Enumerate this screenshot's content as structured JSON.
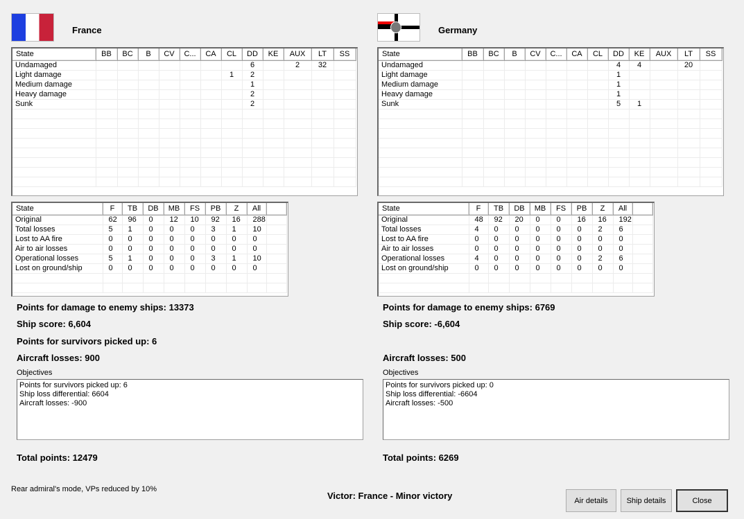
{
  "ship_columns": [
    "State",
    "BB",
    "BC",
    "B",
    "CV",
    "C...",
    "CA",
    "CL",
    "DD",
    "KE",
    "AUX",
    "LT",
    "SS"
  ],
  "air_columns": [
    "State",
    "F",
    "TB",
    "DB",
    "MB",
    "FS",
    "PB",
    "Z",
    "All"
  ],
  "sides": [
    {
      "name": "France",
      "flag": "france-flag",
      "ships": [
        [
          "Undamaged",
          "",
          "",
          "",
          "",
          "",
          "",
          "",
          "6",
          "",
          "2",
          "32",
          ""
        ],
        [
          "Light damage",
          "",
          "",
          "",
          "",
          "",
          "",
          "1",
          "2",
          "",
          "",
          "",
          ""
        ],
        [
          "Medium damage",
          "",
          "",
          "",
          "",
          "",
          "",
          "",
          "1",
          "",
          "",
          "",
          ""
        ],
        [
          "Heavy damage",
          "",
          "",
          "",
          "",
          "",
          "",
          "",
          "2",
          "",
          "",
          "",
          ""
        ],
        [
          "Sunk",
          "",
          "",
          "",
          "",
          "",
          "",
          "",
          "2",
          "",
          "",
          "",
          ""
        ]
      ],
      "air": [
        [
          "Original",
          "62",
          "96",
          "0",
          "12",
          "10",
          "92",
          "16",
          "288"
        ],
        [
          "Total losses",
          "5",
          "1",
          "0",
          "0",
          "0",
          "3",
          "1",
          "10"
        ],
        [
          "Lost to AA fire",
          "0",
          "0",
          "0",
          "0",
          "0",
          "0",
          "0",
          "0"
        ],
        [
          "Air to air losses",
          "0",
          "0",
          "0",
          "0",
          "0",
          "0",
          "0",
          "0"
        ],
        [
          "Operational losses",
          "5",
          "1",
          "0",
          "0",
          "0",
          "3",
          "1",
          "10"
        ],
        [
          "Lost on ground/ship",
          "0",
          "0",
          "0",
          "0",
          "0",
          "0",
          "0",
          "0"
        ]
      ],
      "damage_points": "Points for damage to enemy ships: 13373",
      "ship_score": "Ship score: 6,604",
      "survivors": "Points for survivors picked up: 6",
      "aircraft_losses": "Aircraft losses: 900",
      "objectives_label": "Objectives",
      "objectives": [
        "Points for survivors picked up: 6",
        "Ship loss differential: 6604",
        "Aircraft losses: -900"
      ],
      "total": "Total points: 12479"
    },
    {
      "name": "Germany",
      "flag": "german-imperial-ensign",
      "ships": [
        [
          "Undamaged",
          "",
          "",
          "",
          "",
          "",
          "",
          "",
          "4",
          "4",
          "",
          "20",
          ""
        ],
        [
          "Light damage",
          "",
          "",
          "",
          "",
          "",
          "",
          "",
          "1",
          "",
          "",
          "",
          ""
        ],
        [
          "Medium damage",
          "",
          "",
          "",
          "",
          "",
          "",
          "",
          "1",
          "",
          "",
          "",
          ""
        ],
        [
          "Heavy damage",
          "",
          "",
          "",
          "",
          "",
          "",
          "",
          "1",
          "",
          "",
          "",
          ""
        ],
        [
          "Sunk",
          "",
          "",
          "",
          "",
          "",
          "",
          "",
          "5",
          "1",
          "",
          "",
          ""
        ]
      ],
      "air": [
        [
          "Original",
          "48",
          "92",
          "20",
          "0",
          "0",
          "16",
          "16",
          "192"
        ],
        [
          "Total losses",
          "4",
          "0",
          "0",
          "0",
          "0",
          "0",
          "2",
          "6"
        ],
        [
          "Lost to AA fire",
          "0",
          "0",
          "0",
          "0",
          "0",
          "0",
          "0",
          "0"
        ],
        [
          "Air to air losses",
          "0",
          "0",
          "0",
          "0",
          "0",
          "0",
          "0",
          "0"
        ],
        [
          "Operational losses",
          "4",
          "0",
          "0",
          "0",
          "0",
          "0",
          "2",
          "6"
        ],
        [
          "Lost on ground/ship",
          "0",
          "0",
          "0",
          "0",
          "0",
          "0",
          "0",
          "0"
        ]
      ],
      "damage_points": "Points for damage to enemy ships: 6769",
      "ship_score": "Ship score: -6,604",
      "survivors": "",
      "aircraft_losses": "Aircraft losses: 500",
      "objectives_label": "Objectives",
      "objectives": [
        "Points for survivors picked up: 0",
        "Ship loss differential: -6604",
        "Aircraft losses: -500"
      ],
      "total": "Total points: 6269"
    }
  ],
  "footer": {
    "mode_note": "Rear admiral's mode, VPs reduced by 10%",
    "victor": "Victor: France - Minor victory"
  },
  "buttons": {
    "air": "Air details",
    "ship": "Ship details",
    "close": "Close"
  }
}
